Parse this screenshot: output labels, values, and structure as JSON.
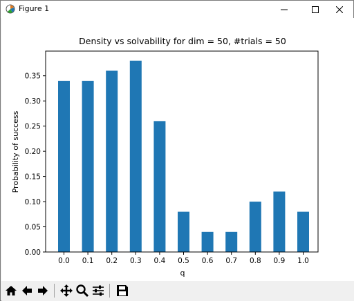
{
  "window": {
    "title": "Figure 1",
    "icons": [
      "matplotlib-logo-icon",
      "minimize-icon",
      "maximize-icon",
      "close-icon"
    ]
  },
  "toolbar": {
    "buttons": [
      "home-icon",
      "back-arrow-icon",
      "forward-arrow-icon",
      "pan-icon",
      "zoom-icon",
      "configure-subplots-icon",
      "save-icon"
    ]
  },
  "chart_data": {
    "type": "bar",
    "title": "Density vs solvability for dim = 50, #trials = 50",
    "xlabel": "q",
    "ylabel": "Probability of success",
    "categories": [
      "0.0",
      "0.1",
      "0.2",
      "0.3",
      "0.4",
      "0.5",
      "0.6",
      "0.7",
      "0.8",
      "0.9",
      "1.0"
    ],
    "values": [
      0.34,
      0.34,
      0.36,
      0.38,
      0.26,
      0.08,
      0.04,
      0.04,
      0.1,
      0.12,
      0.08
    ],
    "yticks": [
      "0.00",
      "0.05",
      "0.10",
      "0.15",
      "0.20",
      "0.25",
      "0.30",
      "0.35"
    ],
    "ytick_values": [
      0,
      0.05,
      0.1,
      0.15,
      0.2,
      0.25,
      0.3,
      0.35
    ],
    "ylim": [
      0,
      0.399
    ],
    "bar_color": "#1f77b4",
    "grid": false,
    "legend": "none"
  }
}
